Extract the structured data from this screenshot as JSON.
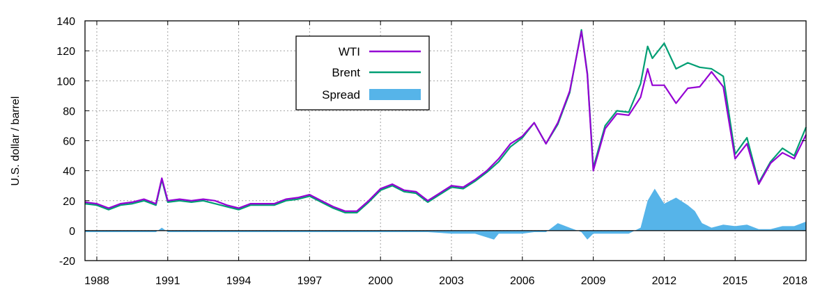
{
  "chart_data": {
    "type": "line",
    "title": "",
    "xlabel": "",
    "ylabel": "U.S. dollar / barrel",
    "xlim": [
      1987.5,
      2018.0
    ],
    "ylim": [
      -20,
      140
    ],
    "x_ticks": [
      "1988",
      "1991",
      "1994",
      "1997",
      "2000",
      "2003",
      "2006",
      "2009",
      "2012",
      "2015",
      "2018"
    ],
    "y_ticks": [
      "-20",
      "0",
      "20",
      "40",
      "60",
      "80",
      "100",
      "120",
      "140"
    ],
    "grid": true,
    "legend_position": "top-center",
    "series": [
      {
        "name": "WTI",
        "color": "#9400d3",
        "style": "line",
        "x": [
          1987.5,
          1988.0,
          1988.5,
          1989.0,
          1989.5,
          1990.0,
          1990.5,
          1990.75,
          1991.0,
          1991.5,
          1992.0,
          1992.5,
          1993.0,
          1993.5,
          1994.0,
          1994.5,
          1995.0,
          1995.5,
          1996.0,
          1996.5,
          1997.0,
          1997.5,
          1998.0,
          1998.5,
          1999.0,
          1999.5,
          2000.0,
          2000.5,
          2001.0,
          2001.5,
          2002.0,
          2002.5,
          2003.0,
          2003.5,
          2004.0,
          2004.5,
          2005.0,
          2005.5,
          2006.0,
          2006.5,
          2007.0,
          2007.5,
          2008.0,
          2008.5,
          2008.75,
          2009.0,
          2009.5,
          2010.0,
          2010.5,
          2011.0,
          2011.3,
          2011.5,
          2012.0,
          2012.5,
          2013.0,
          2013.5,
          2014.0,
          2014.5,
          2015.0,
          2015.5,
          2016.0,
          2016.5,
          2017.0,
          2017.5,
          2018.0
        ],
        "values": [
          19,
          18,
          15,
          18,
          19,
          21,
          18,
          35,
          20,
          21,
          20,
          21,
          20,
          17,
          15,
          18,
          18,
          18,
          21,
          22,
          24,
          20,
          16,
          13,
          13,
          20,
          28,
          31,
          27,
          26,
          20,
          25,
          30,
          29,
          34,
          40,
          48,
          58,
          63,
          72,
          58,
          72,
          93,
          133,
          104,
          40,
          68,
          78,
          77,
          89,
          108,
          97,
          97,
          85,
          95,
          96,
          106,
          96,
          48,
          58,
          31,
          45,
          52,
          48,
          64
        ]
      },
      {
        "name": "Brent",
        "color": "#009e73",
        "style": "line",
        "x": [
          1987.5,
          1988.0,
          1988.5,
          1989.0,
          1989.5,
          1990.0,
          1990.5,
          1990.75,
          1991.0,
          1991.5,
          1992.0,
          1992.5,
          1993.0,
          1993.5,
          1994.0,
          1994.5,
          1995.0,
          1995.5,
          1996.0,
          1996.5,
          1997.0,
          1997.5,
          1998.0,
          1998.5,
          1999.0,
          1999.5,
          2000.0,
          2000.5,
          2001.0,
          2001.5,
          2002.0,
          2002.5,
          2003.0,
          2003.5,
          2004.0,
          2004.5,
          2005.0,
          2005.5,
          2006.0,
          2006.5,
          2007.0,
          2007.5,
          2008.0,
          2008.5,
          2008.75,
          2009.0,
          2009.5,
          2010.0,
          2010.5,
          2011.0,
          2011.3,
          2011.5,
          2012.0,
          2012.5,
          2013.0,
          2013.5,
          2014.0,
          2014.5,
          2015.0,
          2015.5,
          2016.0,
          2016.5,
          2017.0,
          2017.5,
          2018.0
        ],
        "values": [
          18,
          17,
          14,
          17,
          18,
          20,
          17,
          34,
          19,
          20,
          19,
          20,
          18,
          16,
          14,
          17,
          17,
          17,
          20,
          21,
          23,
          19,
          15,
          12,
          12,
          19,
          27,
          30,
          26,
          25,
          19,
          24,
          29,
          28,
          33,
          39,
          46,
          56,
          62,
          72,
          58,
          71,
          92,
          134,
          105,
          42,
          70,
          80,
          79,
          98,
          123,
          115,
          125,
          108,
          112,
          109,
          108,
          103,
          51,
          62,
          32,
          46,
          55,
          50,
          69
        ]
      },
      {
        "name": "Spread",
        "color": "#56b4e9",
        "style": "area",
        "x": [
          1987.5,
          1988.0,
          1989.0,
          1990.0,
          1990.5,
          1990.75,
          1991.0,
          1992.0,
          1993.0,
          1994.0,
          1995.0,
          1996.0,
          1997.0,
          1998.0,
          1999.0,
          2000.0,
          2001.0,
          2002.0,
          2003.0,
          2004.0,
          2004.8,
          2005.0,
          2006.0,
          2006.5,
          2007.0,
          2007.5,
          2008.0,
          2008.5,
          2008.75,
          2009.0,
          2009.5,
          2010.0,
          2010.5,
          2011.0,
          2011.3,
          2011.6,
          2012.0,
          2012.5,
          2013.0,
          2013.3,
          2013.6,
          2014.0,
          2014.5,
          2015.0,
          2015.5,
          2016.0,
          2016.5,
          2017.0,
          2017.5,
          2018.0
        ],
        "values": [
          -1,
          -1,
          -1,
          -1,
          -1,
          2,
          -1,
          -1,
          -1,
          -1,
          -1,
          -1,
          -1,
          -1,
          -1,
          -1,
          -1,
          -1,
          -2,
          -2,
          -6,
          -2,
          -2,
          -1,
          -1,
          5,
          2,
          -1,
          -6,
          -2,
          -2,
          -2,
          -2,
          2,
          20,
          28,
          18,
          22,
          17,
          13,
          5,
          2,
          4,
          3,
          4,
          1,
          1,
          3,
          3,
          6
        ]
      }
    ]
  }
}
